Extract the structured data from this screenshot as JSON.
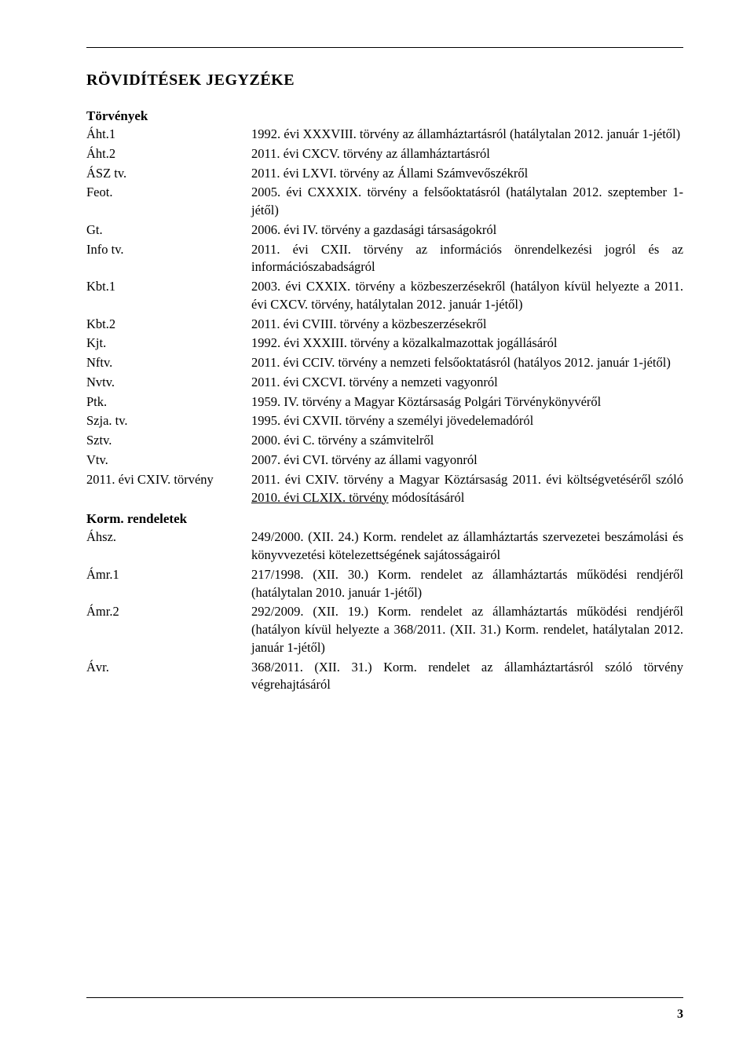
{
  "heading": "RÖVIDÍTÉSEK JEGYZÉKE",
  "pageNumber": "3",
  "sections": [
    {
      "title": "Törvények",
      "items": [
        {
          "abbr": "Áht.1",
          "desc": "1992. évi XXXVIII. törvény az államháztartásról (hatálytalan 2012. január 1-jétől)"
        },
        {
          "abbr": "Áht.2",
          "desc": "2011. évi CXCV. törvény az államháztartásról"
        },
        {
          "abbr": "ÁSZ tv.",
          "desc": "2011. évi LXVI. törvény az Állami Számvevőszékről"
        },
        {
          "abbr": "Feot.",
          "desc": "2005. évi CXXXIX. törvény a felsőoktatásról (hatálytalan 2012. szeptember 1-jétől)"
        },
        {
          "abbr": "Gt.",
          "desc": "2006. évi IV. törvény a gazdasági társaságokról"
        },
        {
          "abbr": "Info tv.",
          "desc": "2011. évi CXII. törvény az információs önrendelkezési jogról és az információszabadságról"
        },
        {
          "abbr": "Kbt.1",
          "desc": "2003. évi CXXIX. törvény a közbeszerzésekről (hatályon kívül helyezte a 2011. évi CXCV. törvény, hatálytalan 2012. január 1-jétől)"
        },
        {
          "abbr": "Kbt.2",
          "desc": "2011. évi CVIII. törvény a közbeszerzésekről"
        },
        {
          "abbr": "Kjt.",
          "desc": "1992. évi XXXIII. törvény a közalkalmazottak jogállásáról"
        },
        {
          "abbr": "Nftv.",
          "desc": "2011. évi CCIV. törvény a nemzeti felsőoktatásról (hatályos 2012. január 1-jétől)"
        },
        {
          "abbr": "Nvtv.",
          "desc": "2011. évi CXCVI. törvény a nemzeti vagyonról"
        },
        {
          "abbr": "Ptk.",
          "desc": "1959. IV. törvény a Magyar Köztársaság Polgári Törvénykönyvéről"
        },
        {
          "abbr": "Szja. tv.",
          "desc": "1995. évi CXVII. törvény a személyi jövedelemadóról"
        },
        {
          "abbr": "Sztv.",
          "desc": "2000. évi C. törvény a számvitelről"
        },
        {
          "abbr": "Vtv.",
          "desc": "2007. évi CVI. törvény az állami vagyonról"
        },
        {
          "abbr": "2011. évi CXIV. törvény",
          "desc_html": "2011. évi CXIV. törvény a Magyar Köztársaság 2011. évi költségvetéséről szóló <span class=\"u\">2010. évi CLXIX. törvény</span> módosításáról"
        }
      ]
    },
    {
      "title": "Korm. rendeletek",
      "items": [
        {
          "abbr": "Áhsz.",
          "desc": "249/2000. (XII. 24.) Korm. rendelet az államháztartás szervezetei beszámolási és könyvvezetési kötelezettségének sajátosságairól"
        },
        {
          "abbr": "Ámr.1",
          "desc": "217/1998. (XII. 30.) Korm. rendelet az államháztartás működési rendjéről (hatálytalan 2010. január 1-jétől)"
        },
        {
          "abbr": "Ámr.2",
          "desc": "292/2009. (XII. 19.) Korm. rendelet az államháztartás működési rendjéről (hatályon kívül helyezte a 368/2011. (XII. 31.) Korm. rendelet, hatálytalan 2012. január 1-jétől)"
        },
        {
          "abbr": "Ávr.",
          "desc": "368/2011. (XII. 31.) Korm. rendelet az államháztartásról szóló törvény végrehajtásáról"
        }
      ]
    }
  ]
}
